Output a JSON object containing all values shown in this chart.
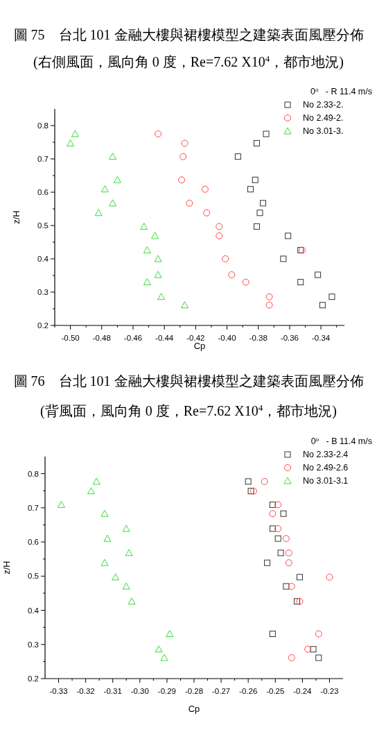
{
  "chart_data": [
    {
      "type": "scatter",
      "title": "圖 75　台北 101 金融大樓與裙樓模型之建築表面風壓分佈",
      "subtitle": "(右側風面，風向角 0 度，Re=7.62 X10$^{4}$，都市地況)",
      "xlabel": "Cp",
      "ylabel": "z/H",
      "legend_title": "0$^{o}$   - R 11.4 m/s",
      "legend": "top right",
      "grid": false,
      "xlim": [
        -0.51,
        -0.325
      ],
      "ylim": [
        0.2,
        0.85
      ],
      "xticks": [
        {
          "value": -0.51,
          "label": null
        },
        {
          "value": -0.5,
          "label": "-0.50"
        },
        {
          "value": -0.49,
          "label": null
        },
        -0.48,
        {
          "value": -0.47,
          "label": null
        },
        -0.46,
        {
          "value": -0.45,
          "label": null
        },
        -0.44,
        {
          "value": -0.43,
          "label": null
        },
        -0.42,
        {
          "value": -0.41,
          "label": null
        },
        {
          "value": -0.4,
          "label": "-0.40"
        },
        {
          "value": -0.39,
          "label": null
        },
        -0.38,
        {
          "value": -0.37,
          "label": null
        },
        -0.36,
        {
          "value": -0.35,
          "label": null
        },
        -0.34,
        {
          "value": -0.33,
          "label": null
        }
      ],
      "yticks": [
        0.2,
        {
          "value": 0.25,
          "label": null
        },
        0.3,
        {
          "value": 0.35,
          "label": null
        },
        0.4,
        {
          "value": 0.45,
          "label": null
        },
        0.5,
        {
          "value": 0.55,
          "label": null
        },
        0.6,
        {
          "value": 0.65,
          "label": null
        },
        0.7,
        {
          "value": 0.75,
          "label": null
        },
        0.8
      ],
      "series": [
        {
          "name": "No 2.33-2.",
          "color": "#333333",
          "marker": "square",
          "x": [
            -0.375,
            -0.381,
            -0.393,
            -0.382,
            -0.385,
            -0.377,
            -0.379,
            -0.381,
            -0.361,
            -0.353,
            -0.364,
            -0.342,
            -0.353,
            -0.333,
            -0.339
          ],
          "values": [
            0.775,
            0.747,
            0.707,
            0.637,
            0.609,
            0.567,
            0.538,
            0.497,
            0.469,
            0.426,
            0.4,
            0.352,
            0.33,
            0.286,
            0.261
          ]
        },
        {
          "name": "No 2.49-2.",
          "color": "#ff4444",
          "marker": "circle",
          "x": [
            -0.444,
            -0.427,
            -0.428,
            -0.429,
            -0.414,
            -0.424,
            -0.413,
            -0.405,
            -0.405,
            -0.352,
            -0.401,
            -0.397,
            -0.388,
            -0.373,
            -0.373
          ],
          "values": [
            0.775,
            0.747,
            0.707,
            0.637,
            0.609,
            0.567,
            0.538,
            0.497,
            0.469,
            0.426,
            0.4,
            0.352,
            0.33,
            0.286,
            0.261
          ]
        },
        {
          "name": "No 3.01-3.",
          "color": "#33dd33",
          "marker": "triangle",
          "x": [
            -0.497,
            -0.5,
            -0.473,
            -0.47,
            -0.478,
            -0.473,
            -0.482,
            -0.453,
            -0.446,
            -0.451,
            -0.444,
            -0.444,
            -0.451,
            -0.442,
            -0.427
          ],
          "values": [
            0.775,
            0.747,
            0.707,
            0.637,
            0.609,
            0.567,
            0.538,
            0.497,
            0.469,
            0.426,
            0.4,
            0.352,
            0.33,
            0.286,
            0.261
          ]
        }
      ]
    },
    {
      "type": "scatter",
      "title": "圖 76　台北 101 金融大樓與裙樓模型之建築表面風壓分佈",
      "subtitle": "(背風面，風向角 0 度，Re=7.62 X10$^{4}$，都市地況)",
      "xlabel": "Cp",
      "ylabel": "z/H",
      "legend_title": "0$^{o}$   - B 11.4 m/s",
      "legend": "top right",
      "grid": false,
      "xlim": [
        -0.335,
        -0.225
      ],
      "ylim": [
        0.2,
        0.85
      ],
      "xticks": [
        -0.33,
        {
          "value": -0.325,
          "label": null
        },
        -0.32,
        {
          "value": -0.315,
          "label": null
        },
        -0.31,
        {
          "value": -0.305,
          "label": null
        },
        {
          "value": -0.3,
          "label": "-0.30"
        },
        {
          "value": -0.295,
          "label": null
        },
        -0.29,
        {
          "value": -0.285,
          "label": null
        },
        -0.28,
        {
          "value": -0.275,
          "label": null
        },
        -0.27,
        {
          "value": -0.265,
          "label": null
        },
        -0.26,
        {
          "value": -0.255,
          "label": null
        },
        -0.25,
        {
          "value": -0.245,
          "label": null
        },
        -0.24,
        {
          "value": -0.235,
          "label": null
        },
        -0.23
      ],
      "yticks": [
        0.2,
        {
          "value": 0.25,
          "label": null
        },
        0.3,
        {
          "value": 0.35,
          "label": null
        },
        0.4,
        {
          "value": 0.45,
          "label": null
        },
        0.5,
        {
          "value": 0.55,
          "label": null
        },
        0.6,
        {
          "value": 0.65,
          "label": null
        },
        0.7,
        {
          "value": 0.75,
          "label": null
        },
        0.8
      ],
      "series": [
        {
          "name": "No 2.33-2.4",
          "color": "#333333",
          "marker": "square",
          "x": [
            -0.26,
            -0.259,
            -0.251,
            -0.247,
            -0.251,
            -0.249,
            -0.248,
            -0.253,
            -0.241,
            -0.246,
            -0.242,
            -0.251,
            -0.236,
            -0.234
          ],
          "values": [
            0.777,
            0.749,
            0.709,
            0.683,
            0.639,
            0.61,
            0.568,
            0.539,
            0.497,
            0.47,
            0.426,
            0.331,
            0.286,
            0.261
          ]
        },
        {
          "name": "No 2.49-2.6",
          "color": "#ff4444",
          "marker": "circle",
          "x": [
            -0.254,
            -0.258,
            -0.249,
            -0.251,
            -0.249,
            -0.246,
            -0.245,
            -0.245,
            -0.23,
            -0.244,
            -0.241,
            -0.234,
            -0.238,
            -0.244
          ],
          "values": [
            0.777,
            0.749,
            0.709,
            0.683,
            0.639,
            0.61,
            0.568,
            0.539,
            0.497,
            0.47,
            0.426,
            0.331,
            0.286,
            0.261
          ]
        },
        {
          "name": "No 3.01-3.1",
          "color": "#33dd33",
          "marker": "triangle",
          "x": [
            -0.316,
            -0.318,
            -0.329,
            -0.313,
            -0.305,
            -0.312,
            -0.304,
            -0.313,
            -0.309,
            -0.305,
            -0.303,
            -0.289,
            -0.293,
            -0.291
          ],
          "values": [
            0.777,
            0.749,
            0.709,
            0.683,
            0.639,
            0.61,
            0.568,
            0.539,
            0.497,
            0.47,
            0.426,
            0.331,
            0.286,
            0.261
          ]
        }
      ]
    }
  ]
}
